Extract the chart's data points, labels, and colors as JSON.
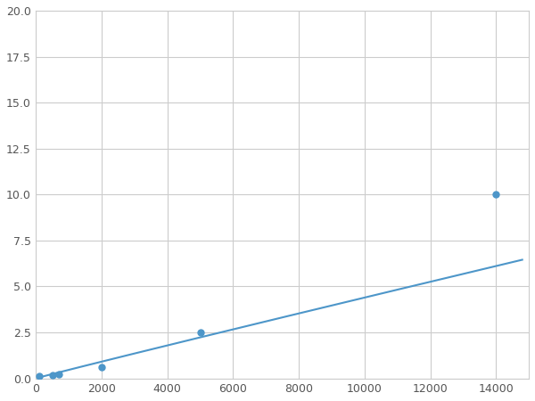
{
  "x": [
    100,
    500,
    700,
    2000,
    5000,
    14000
  ],
  "y": [
    0.1,
    0.15,
    0.2,
    0.6,
    2.5,
    10.0
  ],
  "line_color": "#4d96c9",
  "marker_color": "#4d96c9",
  "marker_size": 5,
  "xlim": [
    0,
    15000
  ],
  "ylim": [
    0,
    20
  ],
  "xticks": [
    0,
    2000,
    4000,
    6000,
    8000,
    10000,
    12000,
    14000
  ],
  "yticks": [
    0.0,
    2.5,
    5.0,
    7.5,
    10.0,
    12.5,
    15.0,
    17.5,
    20.0
  ],
  "grid_color": "#cccccc",
  "background_color": "#ffffff",
  "line_width": 1.5
}
